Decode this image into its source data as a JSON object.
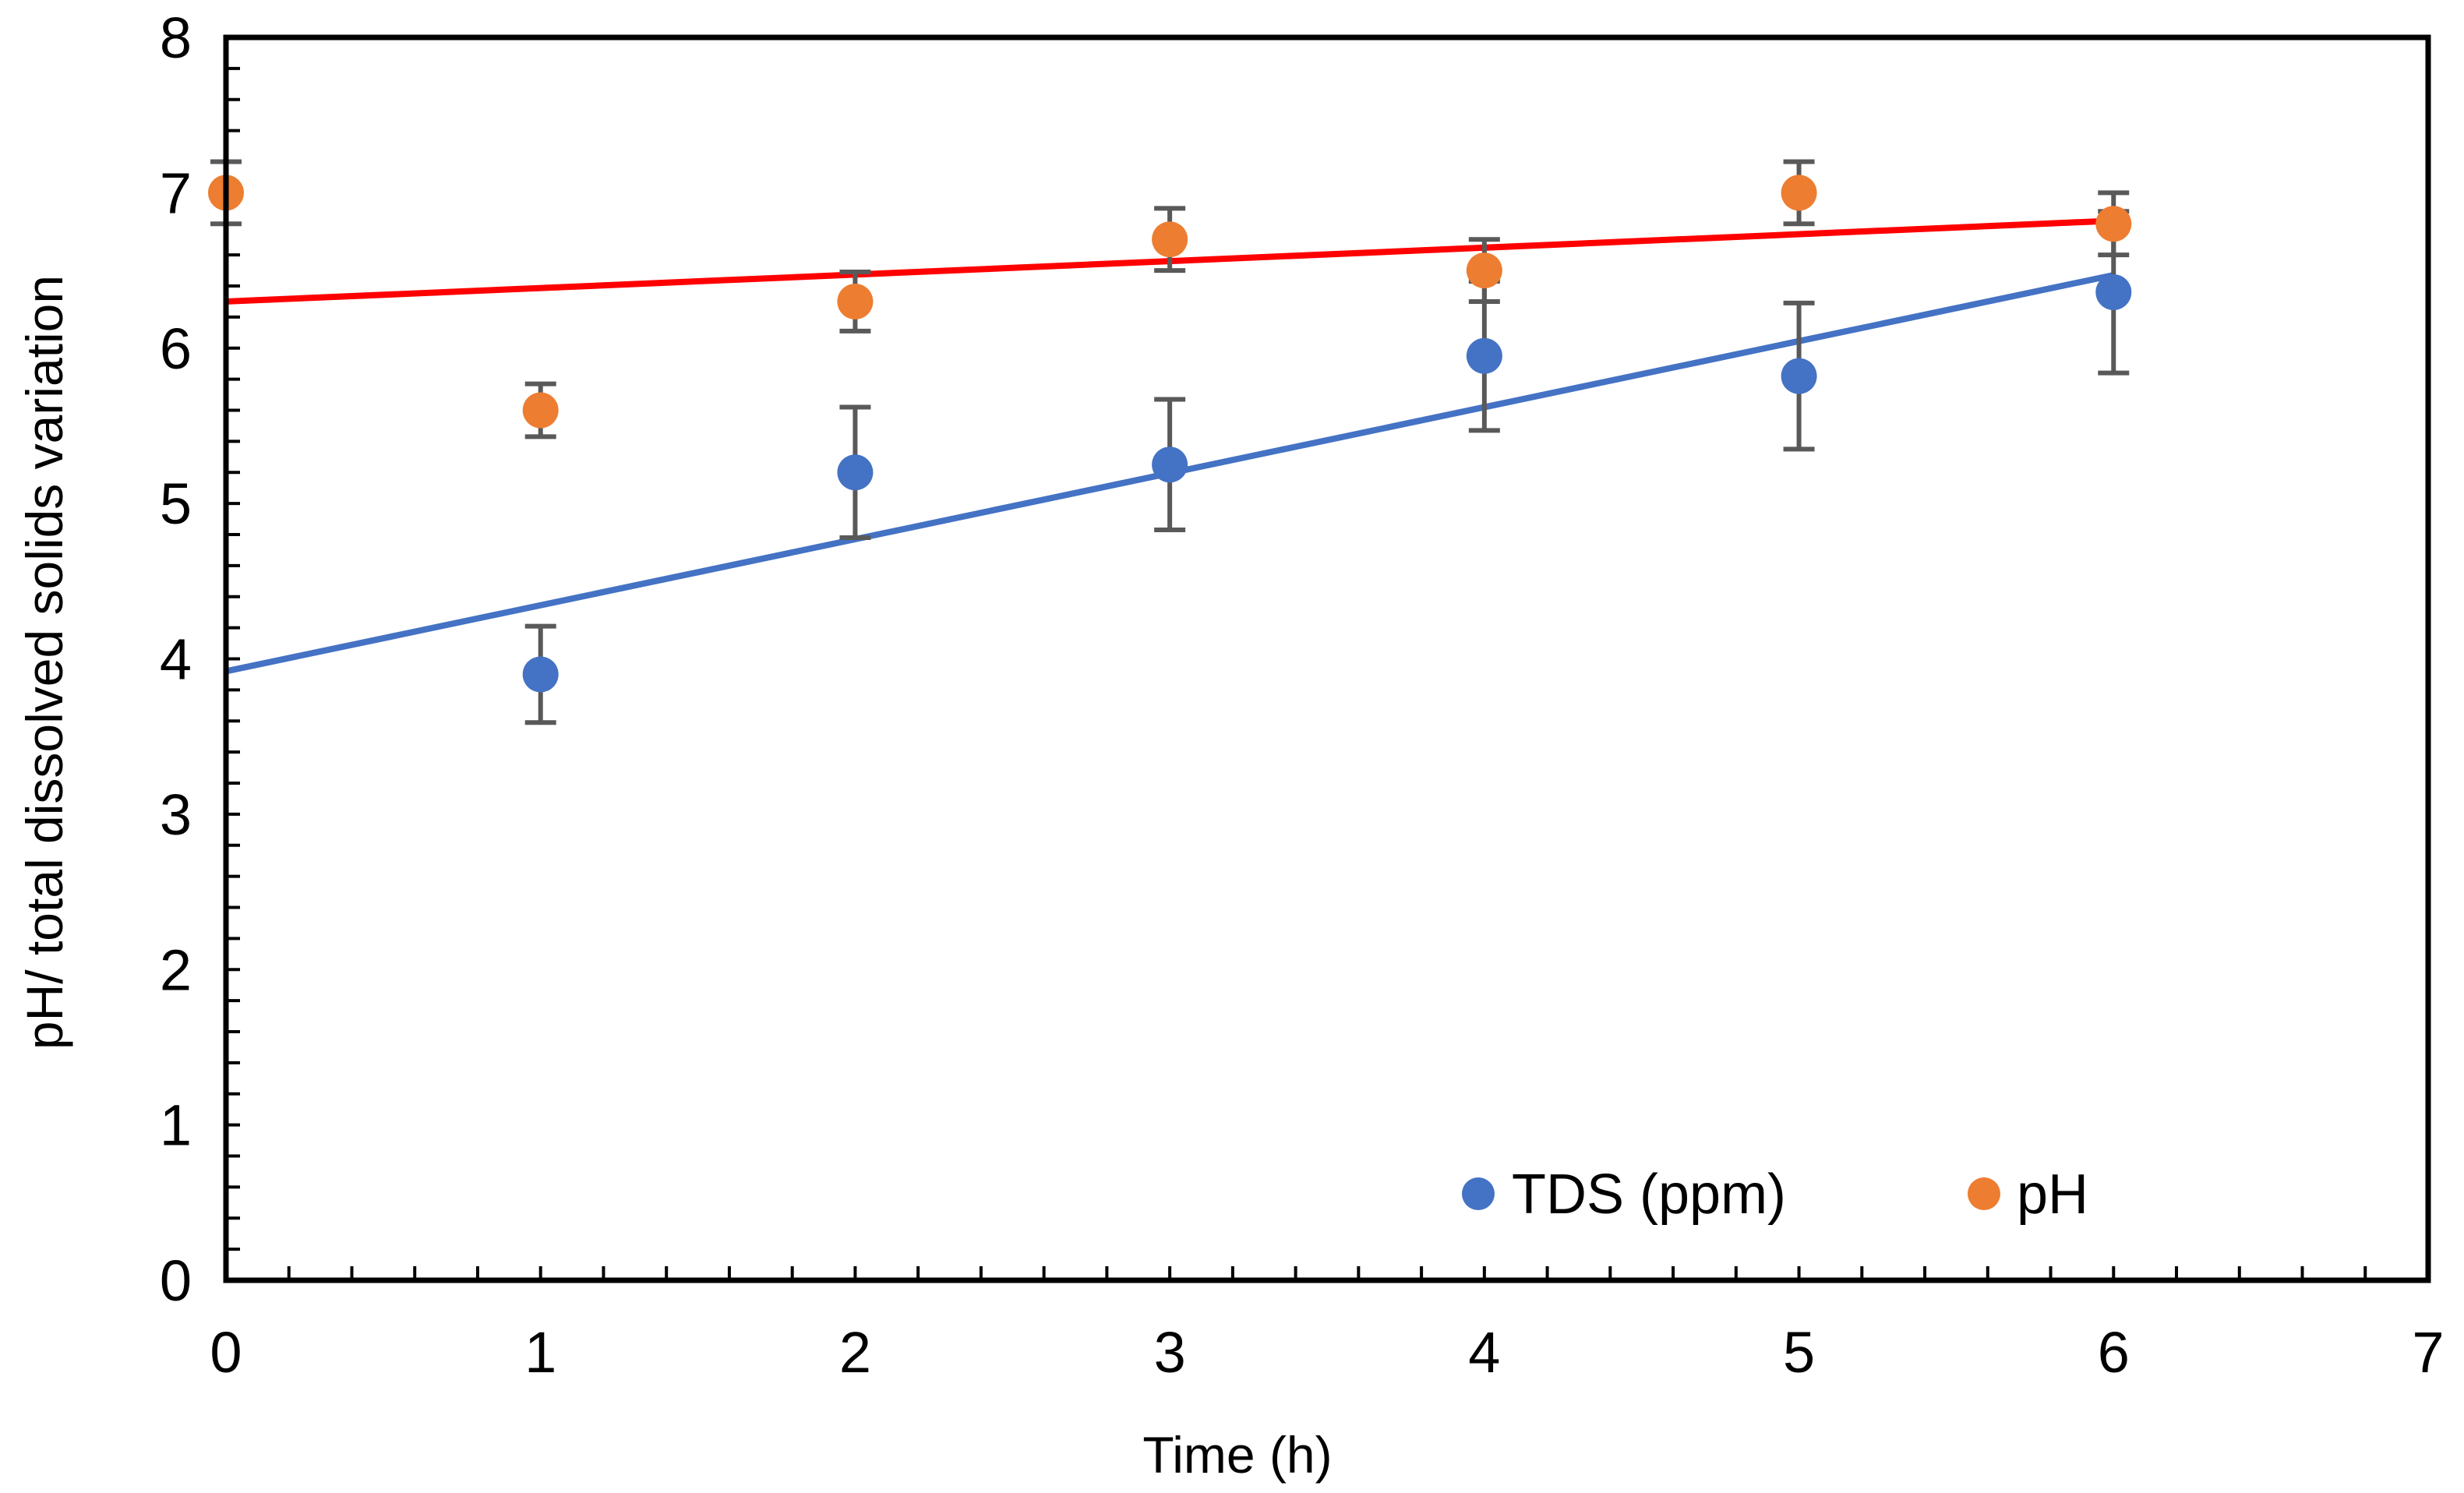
{
  "chart_data": {
    "type": "scatter",
    "title": "",
    "xlabel": "Time (h)",
    "ylabel": "pH/ total dissolved solids variation",
    "xlim": [
      0,
      7
    ],
    "ylim": [
      0,
      8
    ],
    "xticks": [
      "0",
      "1",
      "2",
      "3",
      "4",
      "5",
      "6",
      "7"
    ],
    "yticks": [
      "0",
      "1",
      "2",
      "3",
      "4",
      "5",
      "6",
      "7",
      "8"
    ],
    "grid": false,
    "legend_position": "bottom-right",
    "series": [
      {
        "name": "TDS (ppm)",
        "color": "#4472C4",
        "x": [
          1,
          2,
          3,
          4,
          5,
          6
        ],
        "y": [
          3.9,
          5.2,
          5.25,
          5.95,
          5.82,
          6.36
        ],
        "error": [
          0.31,
          0.42,
          0.42,
          0.48,
          0.47,
          0.52
        ],
        "trendline": {
          "color": "#4472C4",
          "x": [
            0,
            6
          ],
          "y": [
            3.92,
            6.47
          ]
        }
      },
      {
        "name": "pH",
        "color": "#ED7D31",
        "x": [
          0,
          1,
          2,
          3,
          4,
          5,
          6
        ],
        "y": [
          7.0,
          5.6,
          6.3,
          6.7,
          6.5,
          7.0,
          6.8
        ],
        "error": [
          0.2,
          0.17,
          0.19,
          0.2,
          0.2,
          0.2,
          0.2
        ],
        "trendline": {
          "color": "#FF0000",
          "x": [
            0,
            6
          ],
          "y": [
            6.3,
            6.82
          ]
        }
      }
    ],
    "errorbar_color": "#595959"
  }
}
